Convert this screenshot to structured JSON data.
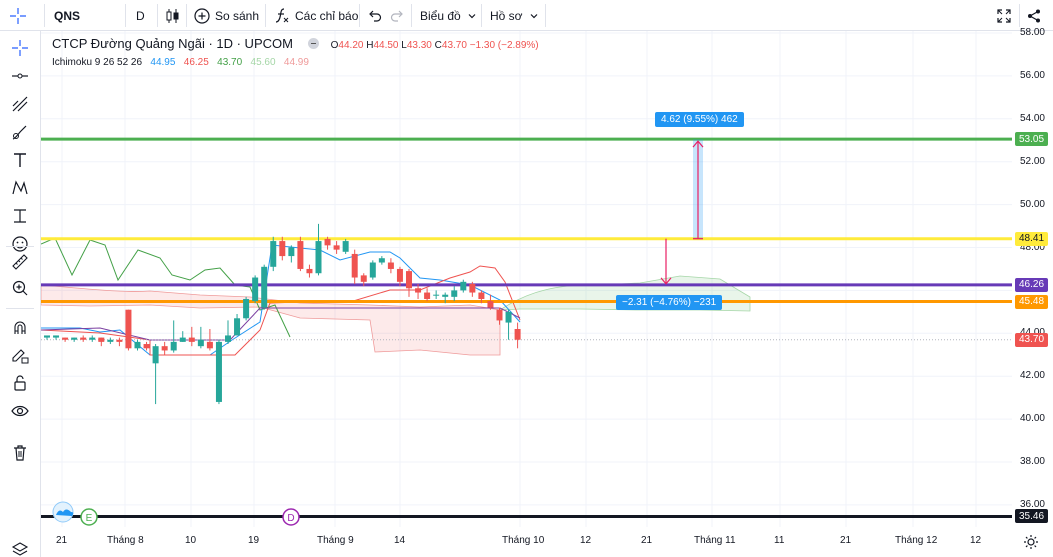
{
  "toolbar": {
    "symbol": "QNS",
    "interval": "D",
    "compare_label": "So sánh",
    "indicators_label": "Các chỉ báo",
    "chart_type_label": "Biểu đồ",
    "profile_label": "Hồ sơ"
  },
  "legend": {
    "title": "CTCP Đường Quảng Ngãi · 1D · UPCOM",
    "o_label": "O",
    "o": "44.20",
    "h_label": "H",
    "h": "44.50",
    "l_label": "L",
    "l": "43.30",
    "c_label": "C",
    "c": "43.70",
    "change": "−1.30 (−2.89%)"
  },
  "indicator": {
    "name": "Ichimoku 9 26 52 26",
    "v1": "44.95",
    "v2": "46.25",
    "v3": "43.70",
    "v4": "45.60",
    "v5": "44.99",
    "colors": [
      "#2196f3",
      "#ef5350",
      "#43a047",
      "#a5d6a7",
      "#ef9a9a"
    ]
  },
  "measure_up": "4.62 (9.55%) 462",
  "measure_down": "−2.31 (−4.76%) −231",
  "price_scale": [
    "58.00",
    "56.00",
    "54.00",
    "52.00",
    "50.00",
    "48.00",
    "46.00",
    "44.00",
    "42.00",
    "40.00",
    "38.00",
    "36.00"
  ],
  "price_tags": [
    {
      "label": "53.05",
      "color": "#4caf50"
    },
    {
      "label": "48.41",
      "color": "#ffeb3b"
    },
    {
      "label": "46.26",
      "color": "#673ab7"
    },
    {
      "label": "45.48",
      "color": "#ff9800"
    },
    {
      "label": "43.70",
      "color": "#ef5350"
    },
    {
      "label": "35.46",
      "color": "#131722"
    }
  ],
  "horizontal_lines": [
    {
      "price": 53.05,
      "color": "#4caf50"
    },
    {
      "price": 48.41,
      "color": "#ffeb3b"
    },
    {
      "price": 46.26,
      "color": "#673ab7"
    },
    {
      "price": 45.48,
      "color": "#ff9800"
    },
    {
      "price": 35.46,
      "color": "#131722"
    }
  ],
  "time_scale": [
    "21",
    "Tháng 8",
    "10",
    "19",
    "Tháng 9",
    "14",
    "Tháng 10",
    "12",
    "21",
    "Tháng 11",
    "11",
    "21",
    "Tháng 12",
    "12"
  ],
  "markers": [
    "E",
    "D"
  ],
  "candles": [
    [
      43.9,
      43.8,
      43.7,
      43.9,
      1
    ],
    [
      43.8,
      43.9,
      43.7,
      43.9,
      1
    ],
    [
      43.8,
      43.7,
      43.6,
      43.8,
      0
    ],
    [
      43.7,
      43.8,
      43.6,
      43.8,
      1
    ],
    [
      43.8,
      43.7,
      43.6,
      43.9,
      0
    ],
    [
      43.7,
      43.8,
      43.6,
      43.9,
      1
    ],
    [
      43.8,
      43.6,
      43.4,
      43.8,
      0
    ],
    [
      43.6,
      43.7,
      43.5,
      43.8,
      1
    ],
    [
      43.7,
      43.6,
      43.4,
      43.8,
      0
    ],
    [
      45.1,
      43.3,
      43.2,
      45.1,
      0
    ],
    [
      43.3,
      43.6,
      43.2,
      43.7,
      1
    ],
    [
      43.5,
      43.3,
      43.2,
      43.6,
      0
    ],
    [
      42.6,
      43.4,
      40.7,
      43.5,
      1
    ],
    [
      43.4,
      43.2,
      43.0,
      43.6,
      0
    ],
    [
      43.2,
      43.6,
      43.1,
      44.6,
      1
    ],
    [
      43.6,
      43.8,
      43.6,
      44.1,
      1
    ],
    [
      43.8,
      43.6,
      43.4,
      44.3,
      0
    ],
    [
      43.4,
      43.7,
      43.3,
      44.3,
      1
    ],
    [
      43.6,
      43.3,
      43.2,
      44.2,
      0
    ],
    [
      40.8,
      43.6,
      40.7,
      43.7,
      1
    ],
    [
      43.6,
      43.9,
      43.5,
      44.6,
      1
    ],
    [
      43.9,
      44.7,
      43.9,
      44.9,
      1
    ],
    [
      44.7,
      45.6,
      44.6,
      45.7,
      1
    ],
    [
      45.5,
      46.6,
      45.4,
      46.7,
      1
    ],
    [
      45.2,
      47.1,
      45.1,
      47.2,
      1
    ],
    [
      47.1,
      48.3,
      46.9,
      48.5,
      1
    ],
    [
      48.3,
      47.6,
      47.4,
      48.5,
      0
    ],
    [
      47.6,
      48.0,
      47.3,
      48.1,
      1
    ],
    [
      48.3,
      47.0,
      46.9,
      48.5,
      0
    ],
    [
      47.0,
      46.8,
      46.6,
      47.2,
      0
    ],
    [
      46.8,
      48.3,
      46.7,
      49.1,
      1
    ],
    [
      48.4,
      48.1,
      47.9,
      48.5,
      0
    ],
    [
      48.1,
      47.9,
      47.7,
      48.3,
      0
    ],
    [
      47.8,
      48.3,
      47.7,
      48.4,
      1
    ],
    [
      47.7,
      46.6,
      46.3,
      47.9,
      0
    ],
    [
      46.7,
      46.4,
      46.2,
      46.8,
      0
    ],
    [
      46.6,
      47.3,
      46.5,
      47.4,
      1
    ],
    [
      47.3,
      47.5,
      47.2,
      47.6,
      1
    ],
    [
      47.3,
      47.0,
      46.8,
      47.5,
      0
    ],
    [
      47.0,
      46.4,
      46.2,
      47.1,
      0
    ],
    [
      46.9,
      46.1,
      45.7,
      47.0,
      0
    ],
    [
      46.1,
      45.9,
      45.6,
      46.3,
      0
    ],
    [
      45.9,
      45.6,
      45.5,
      46.1,
      0
    ],
    [
      45.8,
      45.8,
      45.6,
      46.0,
      1
    ],
    [
      45.7,
      45.8,
      45.4,
      45.9,
      1
    ],
    [
      45.7,
      46.0,
      45.5,
      46.2,
      1
    ],
    [
      46.0,
      46.4,
      45.9,
      46.5,
      1
    ],
    [
      46.3,
      45.9,
      45.7,
      46.4,
      0
    ],
    [
      45.9,
      45.6,
      45.4,
      46.0,
      0
    ],
    [
      45.5,
      45.2,
      45.1,
      45.8,
      0
    ],
    [
      45.1,
      44.6,
      44.4,
      45.2,
      0
    ],
    [
      44.5,
      45.0,
      43.7,
      45.1,
      1
    ],
    [
      44.2,
      43.7,
      43.3,
      44.5,
      0
    ]
  ]
}
